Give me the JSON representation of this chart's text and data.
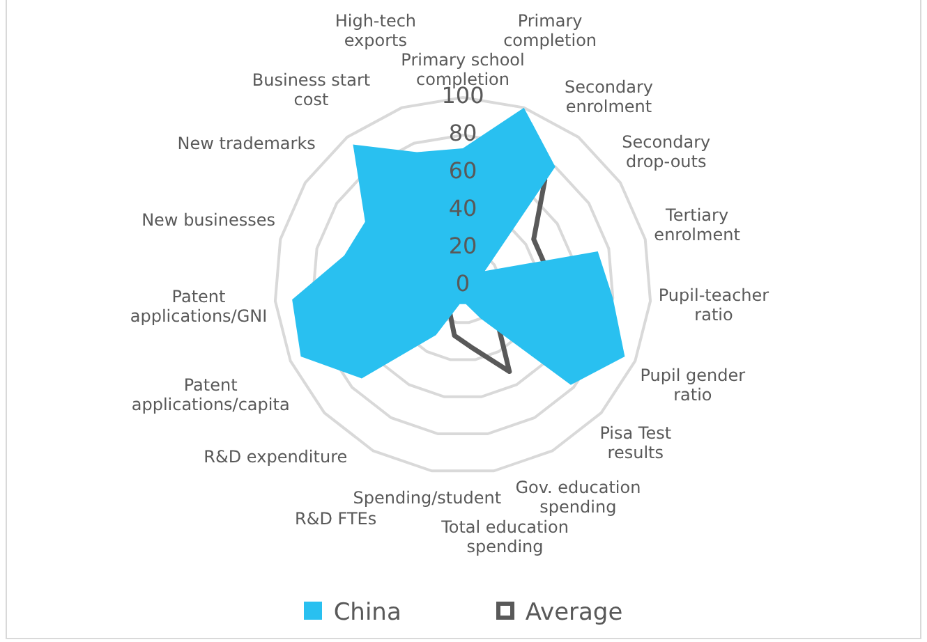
{
  "chart_data": {
    "type": "radar",
    "categories": [
      "Primary school completion",
      "Primary completion",
      "Secondary enrolment",
      "Secondary drop-outs",
      "Tertiary enrolment",
      "Pupil-teacher ratio",
      "Pupil gender ratio",
      "Pisa Test results",
      "Gov. education spending",
      "Total education spending",
      "Spending/student",
      "R&D FTEs",
      "R&D expenditure",
      "Patent applications/capita",
      "Patent applications/GNI",
      "New businesses",
      "New trademarks",
      "Business start cost",
      "High-tech exports"
    ],
    "series": [
      {
        "name": "China",
        "color": "#29c0f0",
        "type": "area",
        "values": [
          73,
          100,
          80,
          14,
          74,
          80,
          94,
          78,
          20,
          10,
          10,
          30,
          73,
          94,
          91,
          65,
          62,
          95,
          75
        ]
      },
      {
        "name": "Average",
        "color": "#595959",
        "values": [
          50,
          71,
          71,
          45,
          45,
          60,
          85,
          24,
          52,
          34,
          27,
          15,
          8,
          6,
          6,
          51,
          37,
          43,
          23
        ]
      }
    ],
    "ylim": [
      0,
      100
    ],
    "yticks": [
      0,
      20,
      40,
      60,
      80,
      100
    ],
    "grid": true,
    "legend": "bottom"
  }
}
